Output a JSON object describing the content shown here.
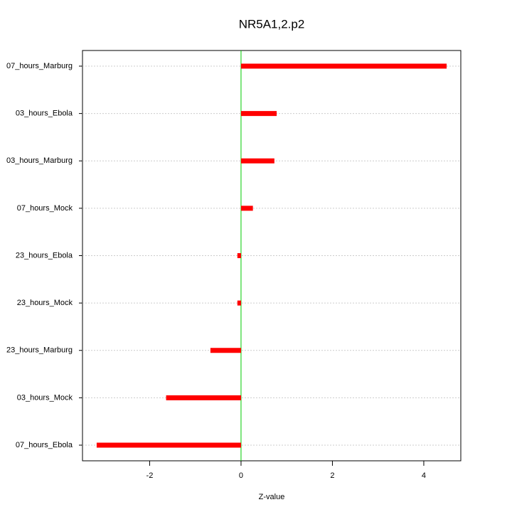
{
  "chart_data": {
    "type": "barh",
    "title": "NR5A1,2.p2",
    "x_label": "Z-value",
    "categories": [
      "07_hours_Marburg",
      "03_hours_Ebola",
      "03_hours_Marburg",
      "07_hours_Mock",
      "23_hours_Ebola",
      "23_hours_Mock",
      "23_hours_Marburg",
      "03_hours_Mock",
      "07_hours_Ebola"
    ],
    "values": [
      4.5,
      0.78,
      0.73,
      0.26,
      -0.08,
      -0.08,
      -0.67,
      -1.64,
      -3.16
    ],
    "color": "#ff0000",
    "zero_line_color": "#00cc00",
    "xlim": [
      -3.47,
      4.81
    ],
    "xticks": [
      -2,
      0,
      2,
      4
    ],
    "grid": true
  }
}
